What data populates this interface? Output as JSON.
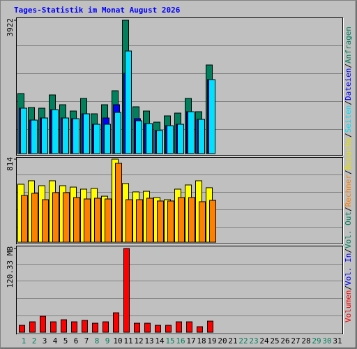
{
  "chart_data": [
    {
      "type": "bar",
      "title": "Tages-Statistik im Monat August 2026",
      "categories": [
        "1",
        "2",
        "3",
        "4",
        "5",
        "6",
        "7",
        "8",
        "9",
        "10",
        "11",
        "12",
        "13",
        "14",
        "15",
        "16",
        "17",
        "18",
        "19",
        "20",
        "21",
        "22",
        "23",
        "24",
        "25",
        "26",
        "27",
        "28",
        "29",
        "30",
        "31"
      ],
      "category_colors": [
        "#00805c",
        "#00805c",
        "#000000",
        "#000000",
        "#000000",
        "#000000",
        "#000000",
        "#00805c",
        "#00805c",
        "#000000",
        "#000000",
        "#000000",
        "#000000",
        "#000000",
        "#00805c",
        "#00805c",
        "#000000",
        "#000000",
        "#000000",
        "#000000",
        "#000000",
        "#00805c",
        "#00805c",
        "#000000",
        "#000000",
        "#000000",
        "#000000",
        "#000000",
        "#00805c",
        "#00805c",
        "#000000"
      ],
      "ylim": [
        0,
        3922
      ],
      "yticks": [
        3922
      ],
      "series": [
        {
          "name": "Anfragen",
          "color": "#00805c",
          "values": [
            1766,
            1355,
            1335,
            1725,
            1437,
            1252,
            1622,
            1170,
            1437,
            1848,
            3922,
            1376,
            1252,
            924,
            1109,
            1191,
            1622,
            1232,
            2607,
            null,
            null,
            null,
            null,
            null,
            null,
            null,
            null,
            null,
            null,
            null,
            null
          ]
        },
        {
          "name": "Dateien",
          "color": "#0000ff",
          "values": [
            1335,
            985,
            1047,
            1293,
            1047,
            1027,
            1170,
            862,
            1047,
            1437,
            2360,
            1027,
            883,
            678,
            821,
            862,
            1232,
            1006,
            2176,
            null,
            null,
            null,
            null,
            null,
            null,
            null,
            null,
            null,
            null,
            null,
            null
          ]
        },
        {
          "name": "Seiten",
          "color": "#00e0ff",
          "values": [
            1335,
            985,
            1047,
            1293,
            1047,
            1027,
            1170,
            862,
            862,
            1211,
            3018,
            965,
            883,
            678,
            821,
            862,
            1232,
            1006,
            2176,
            null,
            null,
            null,
            null,
            null,
            null,
            null,
            null,
            null,
            null,
            null,
            null
          ]
        }
      ]
    },
    {
      "type": "bar",
      "ylim": [
        0,
        814
      ],
      "yticks": [
        814
      ],
      "series": [
        {
          "name": "Besuche",
          "color": "#ffff00",
          "values": [
            568,
            602,
            554,
            602,
            554,
            540,
            520,
            527,
            451,
            814,
            575,
            493,
            499,
            438,
            417,
            520,
            561,
            602,
            534,
            null,
            null,
            null,
            null,
            null,
            null,
            null,
            null,
            null,
            null,
            null,
            null
          ]
        },
        {
          "name": "Rechner",
          "color": "#ff8000",
          "values": [
            458,
            479,
            417,
            486,
            486,
            438,
            424,
            431,
            424,
            773,
            417,
            417,
            431,
            404,
            404,
            438,
            438,
            397,
            410,
            null,
            null,
            null,
            null,
            null,
            null,
            null,
            null,
            null,
            null,
            null,
            null
          ]
        }
      ]
    },
    {
      "type": "bar",
      "ylim": [
        0,
        120.33
      ],
      "yticks": [
        {
          "value": 120.33,
          "label": "120.33 MB"
        }
      ],
      "legend_separator": "/",
      "series": [
        {
          "name": "Volumen",
          "color": "#ff0000",
          "values": [
            10,
            15,
            23,
            15,
            18,
            15,
            17,
            13,
            15,
            28,
            120.33,
            13,
            13,
            10,
            10,
            15,
            15,
            8,
            16,
            null,
            null,
            null,
            null,
            null,
            null,
            null,
            null,
            null,
            null,
            null,
            null
          ]
        },
        {
          "name": "Vol. In",
          "color": "#0000ff",
          "values": [
            null,
            null,
            null,
            null,
            null,
            null,
            null,
            null,
            null,
            null,
            null,
            null,
            null,
            null,
            null,
            null,
            null,
            null,
            null,
            null,
            null,
            null,
            null,
            null,
            null,
            null,
            null,
            null,
            null,
            null,
            null
          ]
        },
        {
          "name": "Vol. Out",
          "color": "#00805c",
          "values": [
            null,
            null,
            null,
            null,
            null,
            null,
            null,
            null,
            null,
            null,
            null,
            null,
            null,
            null,
            null,
            null,
            null,
            null,
            null,
            null,
            null,
            null,
            null,
            null,
            null,
            null,
            null,
            null,
            null,
            null,
            null
          ]
        }
      ]
    }
  ]
}
